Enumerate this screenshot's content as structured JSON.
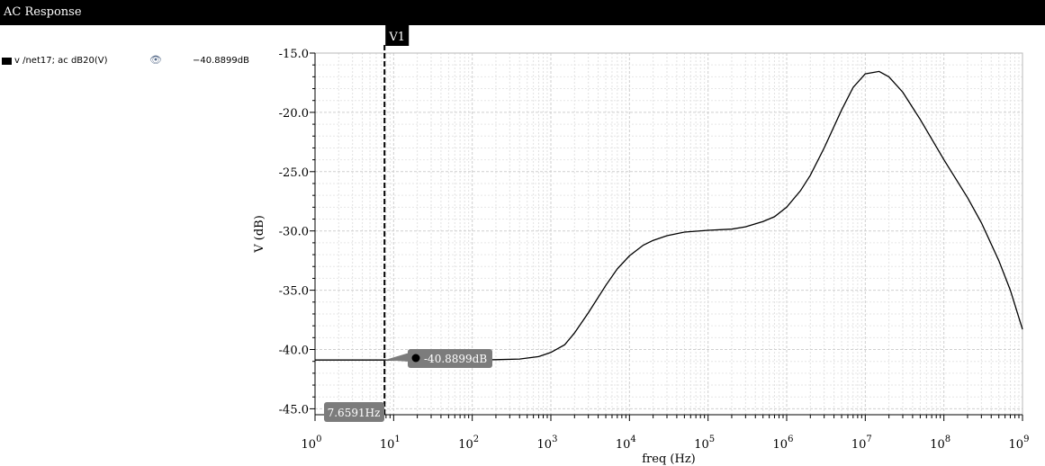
{
  "window": {
    "title": "AC Response"
  },
  "legend": {
    "entries": [
      {
        "name": "v /net17; ac dB20(V)",
        "value": "−40.8899dB",
        "color": "#000000"
      }
    ]
  },
  "cursor": {
    "label": "V1",
    "x_value": 7.6591,
    "x_readout": "7.6591Hz",
    "y_value": -40.8899,
    "y_readout": "-40.8899dB"
  },
  "chart_data": {
    "type": "line",
    "title": "",
    "xlabel": "freq (Hz)",
    "ylabel": "V (dB)",
    "xscale": "log",
    "xlim": [
      1,
      1000000000
    ],
    "ylim": [
      -45.5,
      -15.0
    ],
    "yticks": [
      -15.0,
      -20.0,
      -25.0,
      -30.0,
      -35.0,
      -40.0,
      -45.0
    ],
    "ytick_labels": [
      "-15.0",
      "-20.0",
      "-25.0",
      "-30.0",
      "-35.0",
      "-40.0",
      "-45.0"
    ],
    "xtick_exponents": [
      "0",
      "1",
      "2",
      "3",
      "4",
      "5",
      "6",
      "7",
      "8",
      "9"
    ],
    "xtick_base": "10",
    "grid": true,
    "series": [
      {
        "name": "v /net17; ac dB20(V)",
        "color": "#000000",
        "points": [
          [
            1,
            -40.89
          ],
          [
            10,
            -40.89
          ],
          [
            100,
            -40.88
          ],
          [
            200,
            -40.86
          ],
          [
            400,
            -40.8
          ],
          [
            700,
            -40.6
          ],
          [
            1000,
            -40.25
          ],
          [
            1500,
            -39.6
          ],
          [
            2000,
            -38.6
          ],
          [
            3000,
            -36.9
          ],
          [
            5000,
            -34.6
          ],
          [
            7000,
            -33.2
          ],
          [
            10000,
            -32.1
          ],
          [
            15000,
            -31.2
          ],
          [
            20000,
            -30.8
          ],
          [
            30000,
            -30.4
          ],
          [
            50000,
            -30.1
          ],
          [
            100000,
            -29.95
          ],
          [
            200000,
            -29.85
          ],
          [
            300000,
            -29.65
          ],
          [
            500000,
            -29.2
          ],
          [
            700000,
            -28.8
          ],
          [
            1000000,
            -28.0
          ],
          [
            1500000,
            -26.6
          ],
          [
            2000000,
            -25.3
          ],
          [
            3000000,
            -23.0
          ],
          [
            5000000,
            -19.8
          ],
          [
            7000000,
            -17.9
          ],
          [
            10000000,
            -16.75
          ],
          [
            15000000,
            -16.55
          ],
          [
            20000000,
            -17.0
          ],
          [
            30000000,
            -18.3
          ],
          [
            50000000,
            -20.6
          ],
          [
            100000000,
            -24.0
          ],
          [
            200000000,
            -27.2
          ],
          [
            300000000,
            -29.3
          ],
          [
            500000000,
            -32.5
          ],
          [
            700000000,
            -35.0
          ],
          [
            1000000000,
            -38.3
          ]
        ]
      }
    ]
  }
}
